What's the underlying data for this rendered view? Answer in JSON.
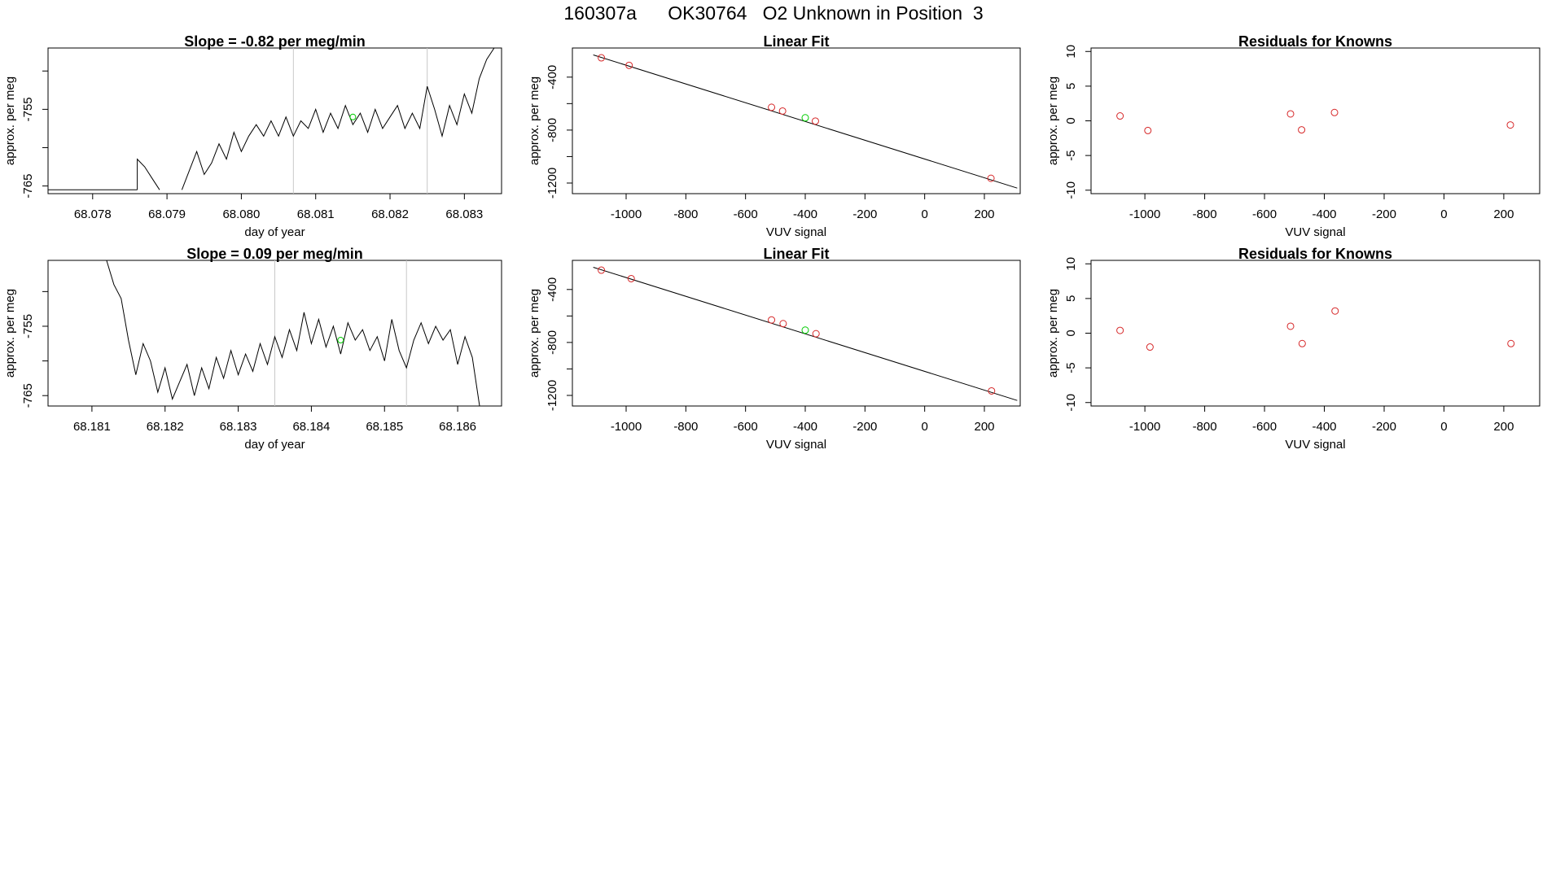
{
  "page": {
    "title": "160307a      OK30764   O2 Unknown in Position  3"
  },
  "colors": {
    "known_point": "#d62728",
    "unknown_point": "#00cc00",
    "line": "#000000",
    "marker_line": "#c8c8c8"
  },
  "chart_data": [
    {
      "id": "ts1",
      "type": "line",
      "title": "Slope =  -0.82  per meg/min",
      "xlabel": "day of year",
      "ylabel": "approx. per meg",
      "xlim": [
        68.0774,
        68.0835
      ],
      "ylim": [
        -766,
        -747
      ],
      "xticks": [
        "68.078",
        "68.079",
        "68.080",
        "68.081",
        "68.082",
        "68.083"
      ],
      "yticks": [
        "-765",
        "",
        "-755",
        ""
      ],
      "ytick_values": [
        -765,
        -760,
        -755,
        -750
      ],
      "vlines": [
        68.0807,
        68.0825
      ],
      "highlight": {
        "x": 68.0815,
        "y": -756
      },
      "series": [
        {
          "segments": [
            [
              [
                68.0774,
                -765.5
              ],
              [
                68.0786,
                -765.5
              ]
            ],
            [
              [
                68.0786,
                -765.5
              ],
              [
                68.0786,
                -761.5
              ],
              [
                68.0787,
                -762.5
              ],
              [
                68.0788,
                -764
              ],
              [
                68.0789,
                -765.5
              ]
            ],
            [
              [
                68.0792,
                -765.5
              ],
              [
                68.0793,
                -763
              ],
              [
                68.0794,
                -760.5
              ],
              [
                68.0795,
                -763.5
              ],
              [
                68.0796,
                -762
              ],
              [
                68.0797,
                -759.5
              ],
              [
                68.0798,
                -761.5
              ],
              [
                68.0799,
                -758
              ],
              [
                68.08,
                -760.5
              ],
              [
                68.0801,
                -758.5
              ],
              [
                68.0802,
                -757
              ],
              [
                68.0803,
                -758.5
              ],
              [
                68.0804,
                -756.5
              ],
              [
                68.0805,
                -758.5
              ],
              [
                68.0806,
                -756
              ],
              [
                68.0807,
                -758.5
              ],
              [
                68.0808,
                -756.5
              ],
              [
                68.0809,
                -757.5
              ],
              [
                68.081,
                -755
              ],
              [
                68.0811,
                -758
              ],
              [
                68.0812,
                -755.5
              ],
              [
                68.0813,
                -757.5
              ],
              [
                68.0814,
                -754.5
              ],
              [
                68.0815,
                -757
              ],
              [
                68.0816,
                -755.5
              ],
              [
                68.0817,
                -758
              ],
              [
                68.0818,
                -755
              ],
              [
                68.0819,
                -757.5
              ],
              [
                68.082,
                -756
              ],
              [
                68.0821,
                -754.5
              ],
              [
                68.0822,
                -757.5
              ],
              [
                68.0823,
                -755.5
              ],
              [
                68.0824,
                -757.5
              ],
              [
                68.0825,
                -752
              ],
              [
                68.0826,
                -755
              ],
              [
                68.0827,
                -758.5
              ],
              [
                68.0828,
                -754.5
              ],
              [
                68.0829,
                -757
              ],
              [
                68.083,
                -753
              ],
              [
                68.0831,
                -755.5
              ],
              [
                68.0832,
                -751
              ],
              [
                68.0833,
                -748.5
              ],
              [
                68.0834,
                -747
              ]
            ]
          ]
        }
      ]
    },
    {
      "id": "fit1",
      "type": "scatter",
      "title": "Linear Fit",
      "xlabel": "VUV signal",
      "ylabel": "approx. per meg",
      "xlim": [
        -1180,
        320
      ],
      "ylim": [
        -1280,
        -180
      ],
      "xticks": [
        -1000,
        -800,
        -600,
        -400,
        -200,
        0,
        200
      ],
      "yticks": [
        -1200,
        -800,
        -400
      ],
      "ytick_extra": [
        -1000,
        -600
      ],
      "fit_line": [
        [
          -1110,
          -232
        ],
        [
          310,
          -1238
        ]
      ],
      "knowns": [
        [
          -1083,
          -254
        ],
        [
          -990,
          -311
        ],
        [
          -513,
          -628
        ],
        [
          -476,
          -656
        ],
        [
          -366,
          -732
        ],
        [
          222,
          -1164
        ]
      ],
      "unknowns": [
        [
          -400,
          -707
        ]
      ]
    },
    {
      "id": "res1",
      "type": "scatter",
      "title": "Residuals for Knowns",
      "xlabel": "VUV signal",
      "ylabel": "approx. per meg",
      "xlim": [
        -1180,
        320
      ],
      "ylim": [
        -10.5,
        10.5
      ],
      "xticks": [
        -1000,
        -800,
        -600,
        -400,
        -200,
        0,
        200
      ],
      "yticks": [
        -10,
        -5,
        0,
        5,
        10
      ],
      "knowns": [
        [
          -1083,
          0.7
        ],
        [
          -990,
          -1.4
        ],
        [
          -513,
          1.0
        ],
        [
          -476,
          -1.3
        ],
        [
          -366,
          1.2
        ],
        [
          222,
          -0.6
        ]
      ]
    },
    {
      "id": "ts2",
      "type": "line",
      "title": "Slope =  0.09  per meg/min",
      "xlabel": "day of year",
      "ylabel": "approx. per meg",
      "xlim": [
        68.1804,
        68.1866
      ],
      "ylim": [
        -766.5,
        -745.5
      ],
      "xticks": [
        "68.181",
        "68.182",
        "68.183",
        "68.184",
        "68.185",
        "68.186"
      ],
      "yticks": [
        "-765",
        "",
        "-755",
        ""
      ],
      "ytick_values": [
        -765,
        -760,
        -755,
        -750
      ],
      "vlines": [
        68.1835,
        68.1853
      ],
      "highlight": {
        "x": 68.1844,
        "y": -757
      },
      "series": [
        {
          "segments": [
            [
              [
                68.1812,
                -745.5
              ],
              [
                68.1813,
                -749
              ],
              [
                68.1814,
                -751
              ],
              [
                68.1815,
                -757
              ],
              [
                68.1816,
                -762
              ],
              [
                68.1817,
                -757.5
              ],
              [
                68.1818,
                -760
              ],
              [
                68.1819,
                -764.5
              ],
              [
                68.182,
                -761
              ],
              [
                68.1821,
                -765.5
              ],
              [
                68.1822,
                -763
              ],
              [
                68.1823,
                -760.5
              ],
              [
                68.1824,
                -765
              ],
              [
                68.1825,
                -761
              ],
              [
                68.1826,
                -764
              ],
              [
                68.1827,
                -759.5
              ],
              [
                68.1828,
                -762.5
              ],
              [
                68.1829,
                -758.5
              ],
              [
                68.183,
                -762
              ],
              [
                68.1831,
                -759
              ],
              [
                68.1832,
                -761.5
              ],
              [
                68.1833,
                -757.5
              ],
              [
                68.1834,
                -760.5
              ],
              [
                68.1835,
                -756.5
              ],
              [
                68.1836,
                -759.5
              ],
              [
                68.1837,
                -755.5
              ],
              [
                68.1838,
                -758.5
              ],
              [
                68.1839,
                -753
              ],
              [
                68.184,
                -757.5
              ],
              [
                68.1841,
                -754
              ],
              [
                68.1842,
                -758
              ],
              [
                68.1843,
                -755
              ],
              [
                68.1844,
                -759
              ],
              [
                68.1845,
                -754.5
              ],
              [
                68.1846,
                -757
              ],
              [
                68.1847,
                -755.5
              ],
              [
                68.1848,
                -758.5
              ],
              [
                68.1849,
                -756.5
              ],
              [
                68.185,
                -760
              ],
              [
                68.1851,
                -754
              ],
              [
                68.1852,
                -758.5
              ],
              [
                68.1853,
                -761
              ],
              [
                68.1854,
                -757
              ],
              [
                68.1855,
                -754.5
              ],
              [
                68.1856,
                -757.5
              ],
              [
                68.1857,
                -755
              ],
              [
                68.1858,
                -757
              ],
              [
                68.1859,
                -755.5
              ],
              [
                68.186,
                -760.5
              ],
              [
                68.1861,
                -756.5
              ],
              [
                68.1862,
                -759.5
              ],
              [
                68.1863,
                -766.5
              ]
            ]
          ]
        }
      ]
    },
    {
      "id": "fit2",
      "type": "scatter",
      "title": "Linear Fit",
      "xlabel": "VUV signal",
      "ylabel": "approx. per meg",
      "xlim": [
        -1180,
        320
      ],
      "ylim": [
        -1280,
        -180
      ],
      "xticks": [
        -1000,
        -800,
        -600,
        -400,
        -200,
        0,
        200
      ],
      "yticks": [
        -1200,
        -800,
        -400
      ],
      "ytick_extra": [
        -1000,
        -600
      ],
      "fit_line": [
        [
          -1110,
          -232
        ],
        [
          310,
          -1238
        ]
      ],
      "knowns": [
        [
          -1083,
          -254
        ],
        [
          -983,
          -318
        ],
        [
          -513,
          -630
        ],
        [
          -474,
          -658
        ],
        [
          -364,
          -734
        ],
        [
          224,
          -1166
        ]
      ],
      "unknowns": [
        [
          -400,
          -707
        ]
      ]
    },
    {
      "id": "res2",
      "type": "scatter",
      "title": "Residuals for Knowns",
      "xlabel": "VUV signal",
      "ylabel": "approx. per meg",
      "xlim": [
        -1180,
        320
      ],
      "ylim": [
        -10.5,
        10.5
      ],
      "xticks": [
        -1000,
        -800,
        -600,
        -400,
        -200,
        0,
        200
      ],
      "yticks": [
        -10,
        -5,
        0,
        5,
        10
      ],
      "knowns": [
        [
          -1083,
          0.4
        ],
        [
          -983,
          -2.0
        ],
        [
          -513,
          1.0
        ],
        [
          -474,
          -1.5
        ],
        [
          -364,
          3.2
        ],
        [
          224,
          -1.5
        ]
      ]
    }
  ]
}
